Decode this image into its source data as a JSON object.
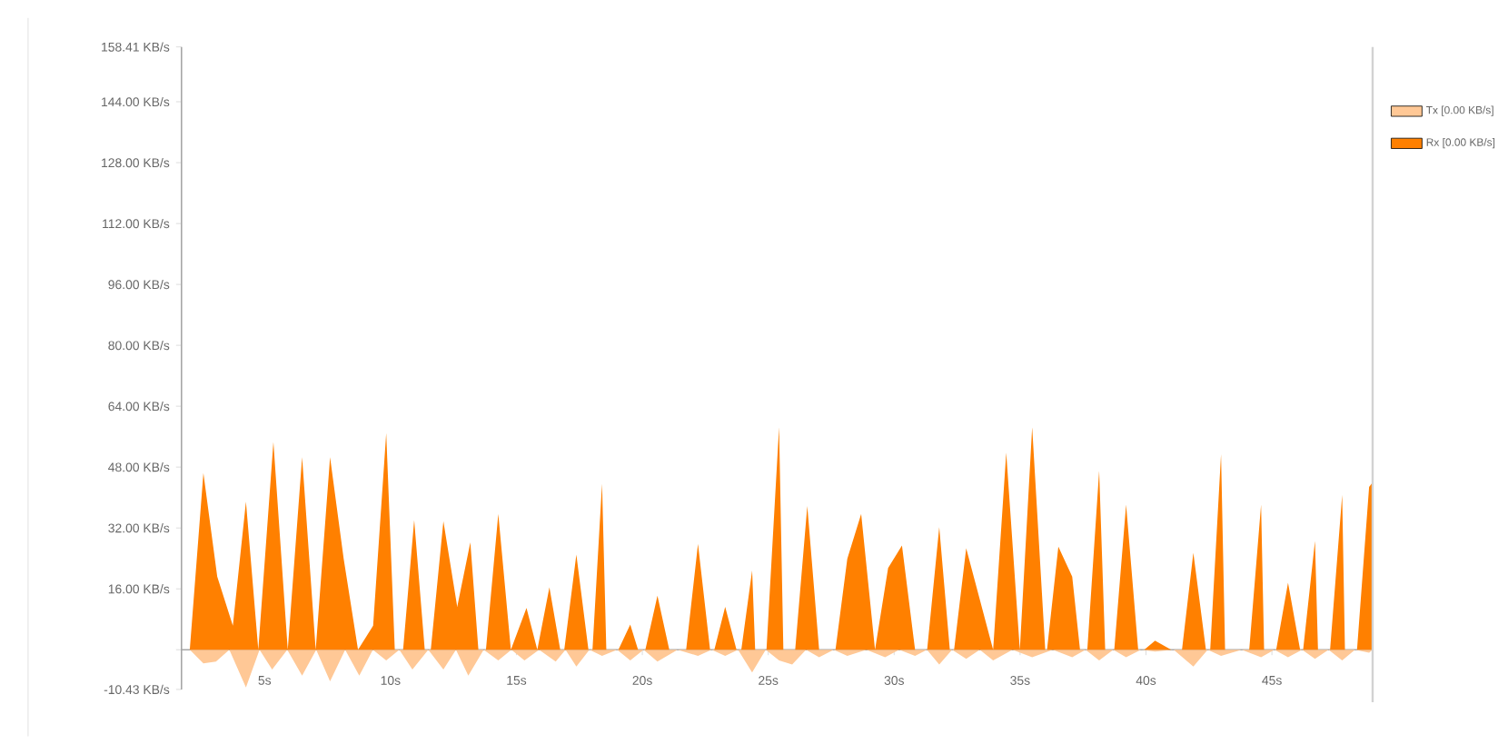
{
  "chart_data": {
    "type": "area",
    "xlim": [
      1.7,
      49
    ],
    "ylim": [
      -10.43,
      158.41
    ],
    "xticks": [
      {
        "value": 5,
        "label": "5s"
      },
      {
        "value": 10,
        "label": "10s"
      },
      {
        "value": 15,
        "label": "15s"
      },
      {
        "value": 20,
        "label": "20s"
      },
      {
        "value": 25,
        "label": "25s"
      },
      {
        "value": 30,
        "label": "30s"
      },
      {
        "value": 35,
        "label": "35s"
      },
      {
        "value": 40,
        "label": "40s"
      },
      {
        "value": 45,
        "label": "45s"
      }
    ],
    "yticks": [
      {
        "value": -10.43,
        "label": "-10.43 KB/s"
      },
      {
        "value": 0,
        "label": null
      },
      {
        "value": 16,
        "label": "16.00 KB/s"
      },
      {
        "value": 32,
        "label": "32.00 KB/s"
      },
      {
        "value": 48,
        "label": "48.00 KB/s"
      },
      {
        "value": 64,
        "label": "64.00 KB/s"
      },
      {
        "value": 80,
        "label": "80.00 KB/s"
      },
      {
        "value": 96,
        "label": "96.00 KB/s"
      },
      {
        "value": 112,
        "label": "112.00 KB/s"
      },
      {
        "value": 128,
        "label": "128.00 KB/s"
      },
      {
        "value": 144,
        "label": "144.00 KB/s"
      },
      {
        "value": 158.41,
        "label": "158.41 KB/s"
      }
    ],
    "grid": false,
    "legend": "top right",
    "series": [
      {
        "name": "Tx [0.00 KB/s]",
        "color": "#ffc896",
        "x": [
          2.03,
          2.57,
          3.07,
          3.6,
          4.26,
          4.8,
          5.3,
          5.9,
          6.49,
          7.05,
          7.6,
          8.2,
          8.76,
          9.3,
          9.83,
          10.35,
          10.87,
          11.5,
          12.1,
          12.6,
          13.09,
          13.7,
          14.28,
          14.8,
          15.32,
          15.9,
          16.56,
          16.95,
          17.38,
          17.9,
          18.4,
          19.0,
          19.52,
          20.05,
          20.6,
          21.4,
          22.21,
          22.75,
          23.29,
          23.8,
          24.36,
          24.9,
          25.43,
          25.95,
          26.5,
          27.02,
          27.6,
          28.14,
          28.9,
          29.64,
          30.2,
          30.83,
          31.3,
          31.79,
          32.3,
          32.86,
          33.4,
          33.93,
          34.7,
          35.48,
          36.3,
          37.07,
          37.6,
          38.14,
          38.7,
          39.21,
          39.8,
          40.36,
          41.1,
          41.88,
          42.45,
          42.98,
          43.8,
          44.57,
          45.1,
          45.64,
          46.2,
          46.71,
          47.25,
          47.79,
          48.3,
          48.86,
          49
        ],
        "values": [
          0,
          -3.6,
          -3.1,
          0,
          -9.9,
          0,
          -5.2,
          0,
          -6.8,
          0,
          -8.3,
          0,
          -6.8,
          0,
          -2.8,
          0,
          -5.2,
          0,
          -5.2,
          0,
          -6.8,
          0,
          -2.8,
          0,
          -2.8,
          0,
          -3.1,
          0,
          -4.4,
          0,
          -1.6,
          0,
          -2.8,
          0,
          -3.1,
          0,
          -1.6,
          0,
          -1.6,
          0,
          -6.0,
          0,
          -2.8,
          -3.9,
          0,
          -2.0,
          0,
          -1.6,
          0,
          -2.0,
          0,
          -1.6,
          0,
          -3.9,
          0,
          -2.4,
          0,
          -2.8,
          0,
          -2.0,
          0,
          -2.0,
          0,
          -2.8,
          0,
          -2.0,
          0,
          -0.5,
          0,
          -4.4,
          0,
          -1.6,
          0,
          -2.0,
          0,
          -2.0,
          0,
          -2.4,
          0,
          -2.8,
          0,
          -0.8,
          0
        ]
      },
      {
        "name": "Rx [0.00 KB/s]",
        "color": "#ff8000",
        "x": [
          2.03,
          2.57,
          3.12,
          3.74,
          4.26,
          4.75,
          5.35,
          5.92,
          6.49,
          7.03,
          7.6,
          8.14,
          8.71,
          9.31,
          9.83,
          10.17,
          10.5,
          10.94,
          11.36,
          11.6,
          12.1,
          12.65,
          13.17,
          13.49,
          13.79,
          14.28,
          14.78,
          15.4,
          15.83,
          16.31,
          16.74,
          16.9,
          17.38,
          17.86,
          18.02,
          18.4,
          18.57,
          19.05,
          19.52,
          19.83,
          20.12,
          20.6,
          21.07,
          21.74,
          22.21,
          22.69,
          22.86,
          23.29,
          23.74,
          23.93,
          24.36,
          24.48,
          24.93,
          25.43,
          25.6,
          26.07,
          26.55,
          27.02,
          27.67,
          28.14,
          28.69,
          29.24,
          29.76,
          30.31,
          30.83,
          31.31,
          31.79,
          32.21,
          32.38,
          32.86,
          33.93,
          34.45,
          34.99,
          35.48,
          36.0,
          36.07,
          36.52,
          37.07,
          37.38,
          37.67,
          38.14,
          38.38,
          38.74,
          39.21,
          39.69,
          39.93,
          40.36,
          41.0,
          41.43,
          41.88,
          42.38,
          42.55,
          42.98,
          43.14,
          44.1,
          44.57,
          44.69,
          45.17,
          45.64,
          46.12,
          46.24,
          46.71,
          46.83,
          47.31,
          47.79,
          47.9,
          48.38,
          48.86,
          49
        ],
        "values": [
          0,
          46.4,
          19.2,
          6.3,
          38.9,
          0,
          54.6,
          0,
          50.6,
          0,
          50.6,
          23.9,
          0,
          6.3,
          56.9,
          0,
          0,
          34.1,
          0,
          0,
          33.8,
          11.3,
          28.2,
          0,
          0,
          35.7,
          0,
          11.0,
          0,
          16.4,
          0,
          0,
          25.0,
          0,
          0,
          43.6,
          0,
          0,
          6.6,
          0,
          0,
          14.2,
          0,
          0,
          27.8,
          0,
          0,
          11.3,
          0,
          0,
          20.8,
          0,
          0,
          58.5,
          0,
          0,
          37.8,
          0,
          0,
          23.9,
          35.7,
          0,
          21.5,
          27.4,
          0,
          0,
          32.2,
          0,
          0,
          26.7,
          0,
          51.8,
          0,
          58.5,
          0,
          0,
          27.1,
          19.2,
          0,
          0,
          47.0,
          0,
          0,
          38.1,
          0,
          0,
          2.4,
          0,
          0,
          25.5,
          0,
          0,
          51.4,
          0,
          0,
          38.1,
          0,
          0,
          17.6,
          0,
          0,
          28.6,
          0,
          0,
          40.7,
          0,
          0,
          42.8,
          44.0
        ]
      }
    ]
  }
}
